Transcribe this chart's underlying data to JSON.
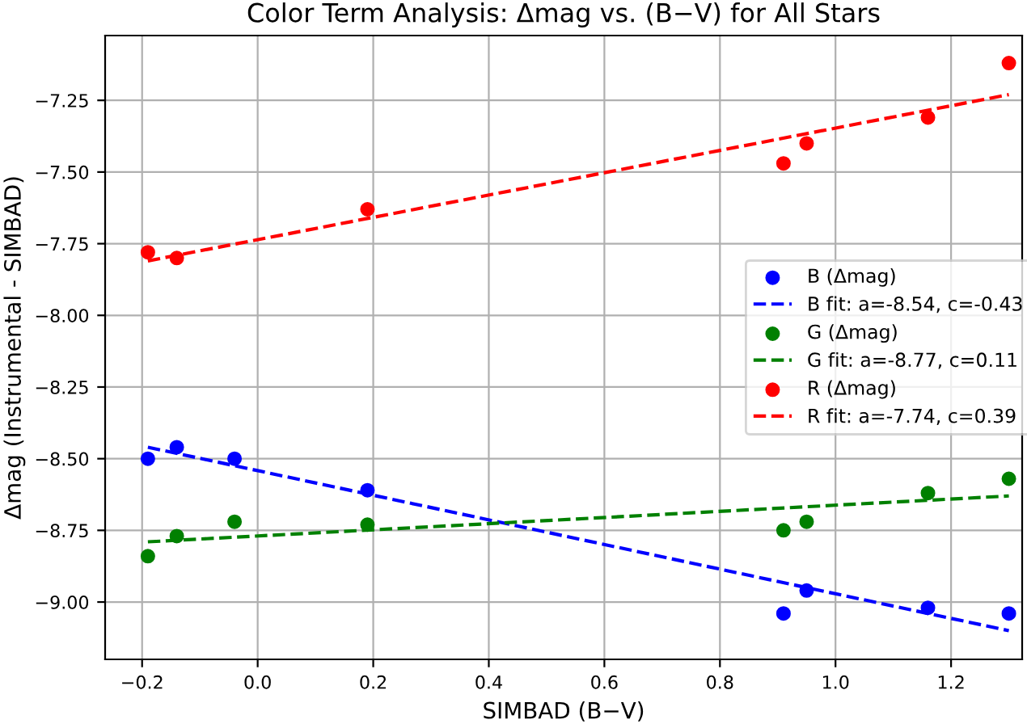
{
  "chart_data": {
    "type": "scatter",
    "title": "Color Term Analysis: Δmag vs. (B−V) for All Stars",
    "xlabel": "SIMBAD (B−V)",
    "ylabel": "Δmag (Instrumental - SIMBAD)",
    "xlim": [
      -0.264,
      1.323
    ],
    "ylim": [
      -9.2,
      -7.024
    ],
    "xticks": [
      {
        "value": -0.2,
        "label": "−0.2"
      },
      {
        "value": 0.0,
        "label": "0.0"
      },
      {
        "value": 0.2,
        "label": "0.2"
      },
      {
        "value": 0.4,
        "label": "0.4"
      },
      {
        "value": 0.6,
        "label": "0.6"
      },
      {
        "value": 0.8,
        "label": "0.8"
      },
      {
        "value": 1.0,
        "label": "1.0"
      },
      {
        "value": 1.2,
        "label": "1.2"
      }
    ],
    "yticks": [
      {
        "value": -9.0,
        "label": "−9.00"
      },
      {
        "value": -8.75,
        "label": "−8.75"
      },
      {
        "value": -8.5,
        "label": "−8.50"
      },
      {
        "value": -8.25,
        "label": "−8.25"
      },
      {
        "value": -8.0,
        "label": "−8.00"
      },
      {
        "value": -7.75,
        "label": "−7.75"
      },
      {
        "value": -7.5,
        "label": "−7.50"
      },
      {
        "value": -7.25,
        "label": "−7.25"
      }
    ],
    "grid": true,
    "legend": "right",
    "series": [
      {
        "name": "B (Δmag)",
        "marker": "circle",
        "color": "#0000ff",
        "x": [
          -0.19,
          -0.14,
          -0.04,
          0.19,
          0.91,
          0.95,
          1.16,
          1.3
        ],
        "values": [
          -8.5,
          -8.46,
          -8.5,
          -8.61,
          -9.04,
          -8.96,
          -9.02,
          -9.04
        ]
      },
      {
        "name": "B fit: a=-8.54, c=-0.43",
        "type": "line",
        "line_style": "dashed",
        "marker": "none",
        "color": "#0000ff",
        "x": [
          -0.19,
          1.3
        ],
        "values": [
          -8.46,
          -9.1
        ]
      },
      {
        "name": "G (Δmag)",
        "marker": "circle",
        "color": "#008000",
        "x": [
          -0.19,
          -0.14,
          -0.04,
          0.19,
          0.91,
          0.95,
          1.16,
          1.3
        ],
        "values": [
          -8.84,
          -8.77,
          -8.72,
          -8.73,
          -8.75,
          -8.72,
          -8.62,
          -8.57
        ]
      },
      {
        "name": "G fit: a=-8.77, c=0.11",
        "type": "line",
        "line_style": "dashed",
        "marker": "none",
        "color": "#008000",
        "x": [
          -0.19,
          1.3
        ],
        "values": [
          -8.79,
          -8.63
        ]
      },
      {
        "name": "R (Δmag)",
        "marker": "circle",
        "color": "#ff0000",
        "x": [
          -0.19,
          -0.14,
          0.19,
          0.91,
          0.95,
          1.16,
          1.3
        ],
        "values": [
          -7.78,
          -7.8,
          -7.63,
          -7.47,
          -7.4,
          -7.31,
          -7.12
        ]
      },
      {
        "name": "R fit: a=-7.74, c=0.39",
        "type": "line",
        "line_style": "dashed",
        "marker": "none",
        "color": "#ff0000",
        "x": [
          -0.19,
          1.3
        ],
        "values": [
          -7.81,
          -7.23
        ]
      }
    ]
  }
}
